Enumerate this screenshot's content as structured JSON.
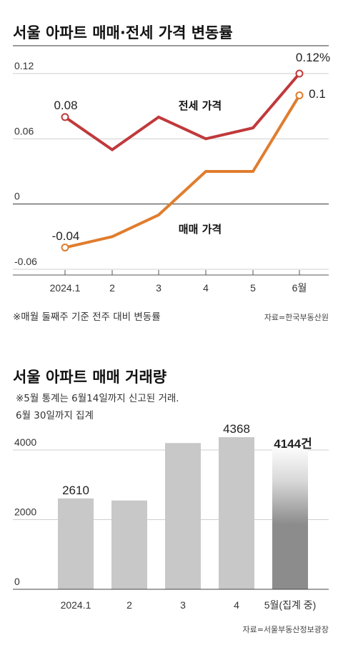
{
  "chart_data": [
    {
      "type": "line",
      "title": "서울 아파트 매매·전세 가격 변동률",
      "categories": [
        "2024.1",
        "2",
        "3",
        "4",
        "5",
        "6월"
      ],
      "yticks": [
        "0.12",
        "0.06",
        "0",
        "-0.06"
      ],
      "ytick_values": [
        0.12,
        0.06,
        0,
        -0.06
      ],
      "ylim": [
        -0.06,
        0.12
      ],
      "series": [
        {
          "name": "전세 가격",
          "values": [
            0.08,
            0.05,
            0.08,
            0.06,
            0.07,
            0.12
          ],
          "color": "#c0393b"
        },
        {
          "name": "매매 가격",
          "values": [
            -0.04,
            -0.03,
            -0.01,
            0.03,
            0.03,
            0.1
          ],
          "color": "#e07d2e"
        }
      ],
      "annotations": [
        {
          "series": 0,
          "index": 0,
          "text": "0.08"
        },
        {
          "series": 0,
          "index": 5,
          "text": "0.12%"
        },
        {
          "series": 1,
          "index": 0,
          "text": "-0.04"
        },
        {
          "series": 1,
          "index": 5,
          "text": "0.1"
        }
      ],
      "note": "※매월 둘째주 기준 전주 대비 변동률",
      "source": "자료=한국부동산원"
    },
    {
      "type": "bar",
      "title": "서울 아파트 매매 거래량",
      "subtitle_lines": [
        "※5월 통계는 6월14일까지 신고된 거래.",
        "6월 30일까지 집계"
      ],
      "categories": [
        "2024.1",
        "2",
        "3",
        "4",
        "5월(집계 중)"
      ],
      "values": [
        2610,
        2550,
        4200,
        4368,
        4144
      ],
      "value_labels": [
        "2610",
        "",
        "",
        "4368",
        "4144건"
      ],
      "yticks": [
        "4000",
        "2000",
        "0"
      ],
      "ytick_values": [
        4000,
        2000,
        0
      ],
      "ylim": [
        0,
        4500
      ],
      "colors": {
        "bar": "#c8c8c8",
        "highlight": "#8c8c8c"
      },
      "source": "자료=서울부동산정보광장"
    }
  ]
}
